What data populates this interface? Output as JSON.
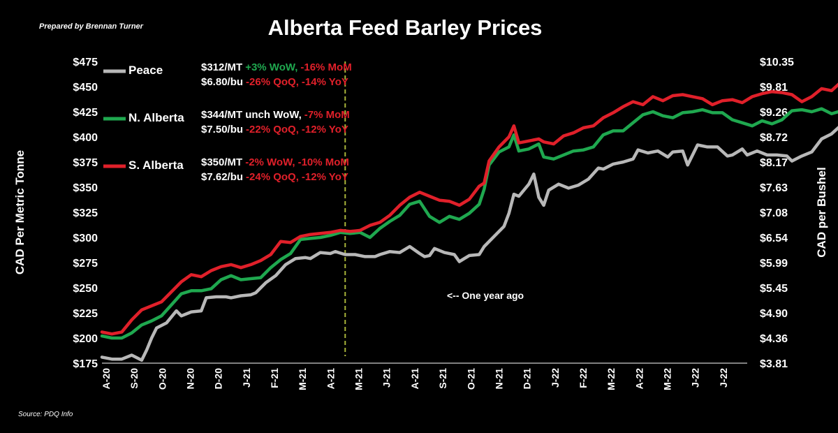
{
  "header": {
    "title": "Alberta Feed Barley Prices",
    "credit": "Prepared by Brennan Turner",
    "source": "Source: PDQ Info"
  },
  "marker": {
    "label": "<-- One year ago",
    "x_index": 49
  },
  "legend": [
    {
      "name": "Peace",
      "color": "#b8b8b8",
      "line1": {
        "price": "$312/MT",
        "changes": [
          {
            "text": "+3% WoW,",
            "color": "#1fa84f"
          },
          {
            "text": "-16% MoM",
            "color": "#e0202a"
          }
        ]
      },
      "line2": {
        "price": "$6.80/bu",
        "changes": [
          {
            "text": "-26% QoQ,",
            "color": "#e0202a"
          },
          {
            "text": "-14% YoY",
            "color": "#e0202a"
          }
        ]
      }
    },
    {
      "name": "N. Alberta",
      "color": "#1fa84f",
      "line1": {
        "price": "$344/MT",
        "changes": [
          {
            "text": "unch WoW,",
            "color": "#ffffff"
          },
          {
            "text": "-7% MoM",
            "color": "#e0202a"
          }
        ]
      },
      "line2": {
        "price": "$7.50/bu",
        "changes": [
          {
            "text": "-22% QoQ,",
            "color": "#e0202a"
          },
          {
            "text": "-12% YoY",
            "color": "#e0202a"
          }
        ]
      }
    },
    {
      "name": "S. Alberta",
      "color": "#e0202a",
      "line1": {
        "price": "$350/MT",
        "changes": [
          {
            "text": "-2% WoW,",
            "color": "#e0202a"
          },
          {
            "text": "-10% MoM",
            "color": "#e0202a"
          }
        ]
      },
      "line2": {
        "price": "$7.62/bu",
        "changes": [
          {
            "text": "-24% QoQ,",
            "color": "#e0202a"
          },
          {
            "text": "-12% YoY",
            "color": "#e0202a"
          }
        ]
      }
    }
  ],
  "chart_data": {
    "type": "line",
    "ylabel": "CAD Per Metric Tonne",
    "y2label": "CAD per Bushel",
    "ylim": [
      175,
      475
    ],
    "yticks": [
      "$175",
      "$200",
      "$225",
      "$250",
      "$275",
      "$300",
      "$325",
      "$350",
      "$375",
      "$400",
      "$425",
      "$450",
      "$475"
    ],
    "y2ticks": [
      "$3.81",
      "$4.36",
      "$4.90",
      "$5.45",
      "$5.99",
      "$6.54",
      "$7.08",
      "$7.63",
      "$8.17",
      "$8.72",
      "$9.26",
      "$9.81",
      "$10.35"
    ],
    "xticks": [
      "A-20",
      "S-20",
      "O-20",
      "N-20",
      "D-20",
      "J-21",
      "F-21",
      "M-21",
      "A-21",
      "M-21",
      "J-21",
      "A-21",
      "S-21",
      "O-21",
      "N-21",
      "D-21",
      "J-22",
      "F-22",
      "M-22",
      "A-22",
      "M-22",
      "J-22",
      "J-22"
    ],
    "n_points": 131,
    "series": [
      {
        "name": "Peace",
        "color": "#b8b8b8",
        "points": [
          [
            0,
            181
          ],
          [
            2,
            179
          ],
          [
            4,
            179
          ],
          [
            6,
            183
          ],
          [
            8,
            178
          ],
          [
            9,
            188
          ],
          [
            10,
            200
          ],
          [
            11,
            210
          ],
          [
            13,
            215
          ],
          [
            15,
            227
          ],
          [
            16,
            222
          ],
          [
            18,
            226
          ],
          [
            20,
            227
          ],
          [
            21,
            240
          ],
          [
            23,
            241
          ],
          [
            25,
            241
          ],
          [
            26,
            240
          ],
          [
            28,
            242
          ],
          [
            30,
            243
          ],
          [
            31,
            245
          ],
          [
            32,
            250
          ],
          [
            33,
            255
          ],
          [
            35,
            262
          ],
          [
            37,
            273
          ],
          [
            39,
            279
          ],
          [
            41,
            280
          ],
          [
            42,
            279
          ],
          [
            44,
            285
          ],
          [
            46,
            284
          ],
          [
            47,
            286
          ],
          [
            49,
            283
          ],
          [
            51,
            283
          ],
          [
            53,
            281
          ],
          [
            55,
            281
          ],
          [
            56,
            283
          ],
          [
            58,
            286
          ],
          [
            60,
            285
          ],
          [
            62,
            291
          ],
          [
            64,
            284
          ],
          [
            65,
            281
          ],
          [
            66,
            282
          ],
          [
            67,
            289
          ],
          [
            69,
            285
          ],
          [
            71,
            283
          ],
          [
            72,
            276
          ],
          [
            73,
            279
          ],
          [
            74,
            282
          ],
          [
            76,
            283
          ],
          [
            77,
            291
          ],
          [
            79,
            301
          ],
          [
            81,
            311
          ],
          [
            82,
            324
          ],
          [
            83,
            343
          ],
          [
            84,
            341
          ],
          [
            86,
            353
          ],
          [
            87,
            363
          ],
          [
            88,
            340
          ],
          [
            89,
            332
          ],
          [
            90,
            347
          ],
          [
            92,
            353
          ],
          [
            94,
            349
          ],
          [
            96,
            352
          ],
          [
            98,
            358
          ],
          [
            100,
            369
          ],
          [
            101,
            368
          ],
          [
            103,
            373
          ],
          [
            105,
            375
          ],
          [
            107,
            378
          ],
          [
            108,
            387
          ],
          [
            110,
            384
          ],
          [
            112,
            386
          ],
          [
            114,
            380
          ],
          [
            115,
            385
          ],
          [
            117,
            386
          ],
          [
            118,
            372
          ],
          [
            120,
            392
          ],
          [
            122,
            390
          ],
          [
            124,
            390
          ],
          [
            126,
            381
          ],
          [
            127,
            382
          ],
          [
            129,
            388
          ],
          [
            130,
            382
          ],
          [
            132,
            386
          ],
          [
            134,
            382
          ],
          [
            136,
            382
          ],
          [
            138,
            381
          ],
          [
            139,
            376
          ],
          [
            141,
            381
          ],
          [
            143,
            385
          ],
          [
            145,
            398
          ],
          [
            147,
            403
          ],
          [
            149,
            412
          ],
          [
            150,
            418
          ],
          [
            152,
            395
          ],
          [
            154,
            411
          ],
          [
            156,
            402
          ],
          [
            157,
            405
          ],
          [
            159,
            402
          ],
          [
            161,
            404
          ],
          [
            163,
            373
          ],
          [
            165,
            338
          ],
          [
            167,
            312
          ],
          [
            169,
            302
          ],
          [
            171,
            312
          ]
        ]
      },
      {
        "name": "N. Alberta",
        "color": "#1fa84f",
        "points": [
          [
            0,
            202
          ],
          [
            2,
            200
          ],
          [
            4,
            200
          ],
          [
            6,
            205
          ],
          [
            8,
            213
          ],
          [
            10,
            217
          ],
          [
            12,
            222
          ],
          [
            14,
            233
          ],
          [
            16,
            244
          ],
          [
            18,
            247
          ],
          [
            20,
            247
          ],
          [
            22,
            249
          ],
          [
            24,
            258
          ],
          [
            26,
            262
          ],
          [
            28,
            258
          ],
          [
            30,
            259
          ],
          [
            32,
            260
          ],
          [
            34,
            270
          ],
          [
            36,
            278
          ],
          [
            38,
            284
          ],
          [
            40,
            298
          ],
          [
            42,
            299
          ],
          [
            44,
            300
          ],
          [
            46,
            302
          ],
          [
            48,
            305
          ],
          [
            50,
            304
          ],
          [
            52,
            305
          ],
          [
            54,
            300
          ],
          [
            56,
            309
          ],
          [
            58,
            316
          ],
          [
            60,
            322
          ],
          [
            62,
            333
          ],
          [
            64,
            336
          ],
          [
            66,
            321
          ],
          [
            68,
            315
          ],
          [
            70,
            321
          ],
          [
            72,
            318
          ],
          [
            74,
            324
          ],
          [
            76,
            333
          ],
          [
            77,
            348
          ],
          [
            78,
            372
          ],
          [
            80,
            385
          ],
          [
            82,
            390
          ],
          [
            83,
            402
          ],
          [
            84,
            386
          ],
          [
            86,
            388
          ],
          [
            88,
            393
          ],
          [
            89,
            380
          ],
          [
            91,
            378
          ],
          [
            93,
            382
          ],
          [
            95,
            386
          ],
          [
            97,
            387
          ],
          [
            99,
            390
          ],
          [
            101,
            402
          ],
          [
            103,
            406
          ],
          [
            105,
            406
          ],
          [
            107,
            414
          ],
          [
            109,
            422
          ],
          [
            111,
            425
          ],
          [
            113,
            421
          ],
          [
            115,
            419
          ],
          [
            117,
            424
          ],
          [
            119,
            425
          ],
          [
            121,
            427
          ],
          [
            123,
            424
          ],
          [
            125,
            424
          ],
          [
            127,
            417
          ],
          [
            129,
            414
          ],
          [
            131,
            411
          ],
          [
            133,
            416
          ],
          [
            135,
            413
          ],
          [
            137,
            417
          ],
          [
            139,
            426
          ],
          [
            141,
            427
          ],
          [
            143,
            425
          ],
          [
            145,
            428
          ],
          [
            147,
            423
          ],
          [
            149,
            426
          ],
          [
            151,
            434
          ],
          [
            153,
            438
          ],
          [
            155,
            446
          ],
          [
            157,
            441
          ],
          [
            159,
            438
          ],
          [
            161,
            431
          ],
          [
            163,
            422
          ],
          [
            165,
            410
          ],
          [
            167,
            390
          ],
          [
            169,
            375
          ],
          [
            171,
            370
          ],
          [
            173,
            369
          ],
          [
            175,
            362
          ],
          [
            177,
            347
          ],
          [
            179,
            346
          ]
        ]
      },
      {
        "name": "S. Alberta",
        "color": "#e0202a",
        "points": [
          [
            0,
            206
          ],
          [
            2,
            204
          ],
          [
            4,
            206
          ],
          [
            6,
            218
          ],
          [
            8,
            228
          ],
          [
            10,
            232
          ],
          [
            12,
            236
          ],
          [
            14,
            246
          ],
          [
            16,
            256
          ],
          [
            18,
            263
          ],
          [
            20,
            261
          ],
          [
            22,
            267
          ],
          [
            24,
            271
          ],
          [
            26,
            273
          ],
          [
            28,
            270
          ],
          [
            30,
            273
          ],
          [
            32,
            277
          ],
          [
            34,
            283
          ],
          [
            36,
            296
          ],
          [
            38,
            295
          ],
          [
            40,
            301
          ],
          [
            42,
            303
          ],
          [
            44,
            304
          ],
          [
            46,
            305
          ],
          [
            48,
            307
          ],
          [
            50,
            306
          ],
          [
            52,
            307
          ],
          [
            54,
            312
          ],
          [
            56,
            315
          ],
          [
            58,
            322
          ],
          [
            60,
            332
          ],
          [
            62,
            340
          ],
          [
            64,
            345
          ],
          [
            66,
            341
          ],
          [
            68,
            337
          ],
          [
            70,
            336
          ],
          [
            72,
            332
          ],
          [
            74,
            338
          ],
          [
            76,
            351
          ],
          [
            77,
            354
          ],
          [
            78,
            376
          ],
          [
            80,
            390
          ],
          [
            82,
            400
          ],
          [
            83,
            411
          ],
          [
            84,
            394
          ],
          [
            86,
            396
          ],
          [
            88,
            398
          ],
          [
            89,
            395
          ],
          [
            91,
            393
          ],
          [
            93,
            401
          ],
          [
            95,
            404
          ],
          [
            97,
            409
          ],
          [
            99,
            411
          ],
          [
            101,
            419
          ],
          [
            103,
            424
          ],
          [
            105,
            430
          ],
          [
            107,
            435
          ],
          [
            109,
            432
          ],
          [
            111,
            440
          ],
          [
            113,
            436
          ],
          [
            115,
            441
          ],
          [
            117,
            442
          ],
          [
            119,
            440
          ],
          [
            121,
            438
          ],
          [
            123,
            432
          ],
          [
            125,
            436
          ],
          [
            127,
            437
          ],
          [
            129,
            434
          ],
          [
            131,
            440
          ],
          [
            133,
            443
          ],
          [
            135,
            445
          ],
          [
            137,
            444
          ],
          [
            139,
            442
          ],
          [
            141,
            435
          ],
          [
            143,
            440
          ],
          [
            145,
            448
          ],
          [
            147,
            446
          ],
          [
            149,
            455
          ],
          [
            151,
            457
          ],
          [
            153,
            458
          ],
          [
            155,
            458
          ],
          [
            157,
            458
          ],
          [
            159,
            454
          ],
          [
            161,
            446
          ],
          [
            163,
            432
          ],
          [
            165,
            430
          ],
          [
            167,
            416
          ],
          [
            169,
            398
          ],
          [
            171,
            385
          ],
          [
            173,
            375
          ],
          [
            175,
            366
          ],
          [
            177,
            356
          ],
          [
            179,
            348
          ]
        ]
      }
    ],
    "grid": false,
    "legend_position": "top-left"
  }
}
